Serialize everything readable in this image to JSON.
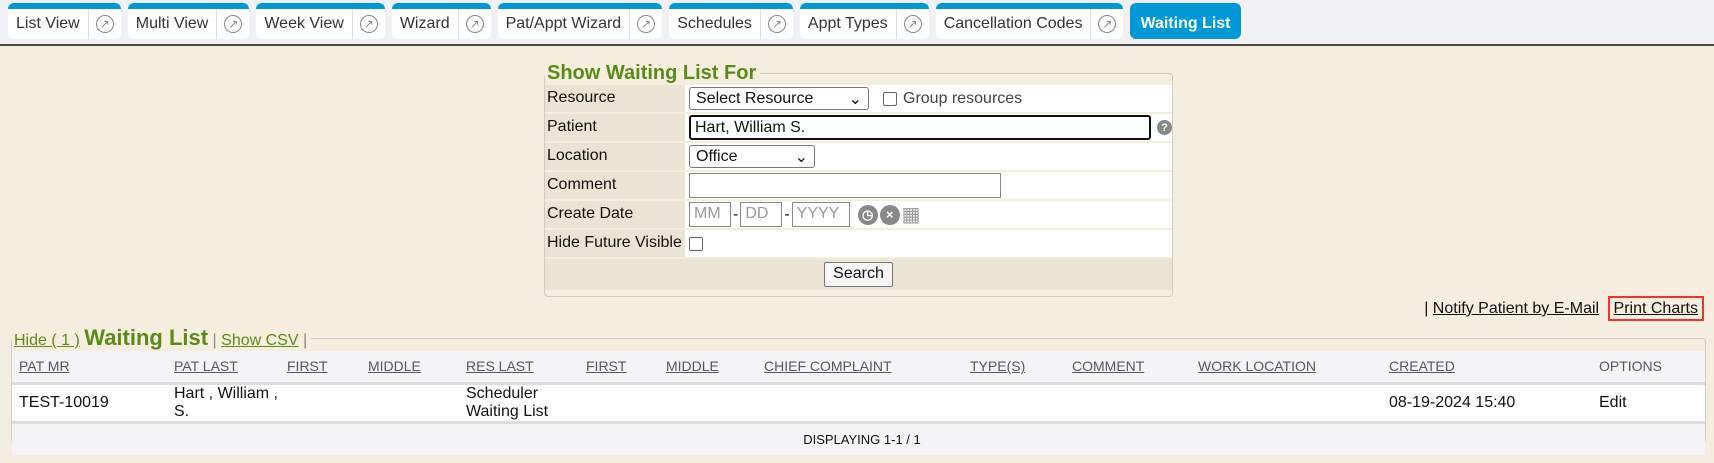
{
  "tabs": [
    {
      "label": "List View"
    },
    {
      "label": "Multi View"
    },
    {
      "label": "Week View"
    },
    {
      "label": "Wizard"
    },
    {
      "label": "Pat/Appt Wizard"
    },
    {
      "label": "Schedules"
    },
    {
      "label": "Appt Types"
    },
    {
      "label": "Cancellation Codes"
    }
  ],
  "active_tab": "Waiting List",
  "form": {
    "title": "Show Waiting List For",
    "resource_label": "Resource",
    "resource_value": "Select Resource",
    "group_label": "Group resources",
    "patient_label": "Patient",
    "patient_value": "Hart, William S.",
    "location_label": "Location",
    "location_value": "Office",
    "comment_label": "Comment",
    "comment_value": "",
    "date_label": "Create Date",
    "mm": "MM",
    "dd": "DD",
    "yyyy": "YYYY",
    "hide_label": "Hide Future Visible",
    "search": "Search"
  },
  "links": {
    "sep": "|",
    "notify": "Notify Patient by E-Mail",
    "print": "Print Charts"
  },
  "list": {
    "hide": "Hide ( 1 )",
    "title": "Waiting List",
    "csv": "Show CSV",
    "columns": [
      "PAT MR",
      "PAT LAST",
      "FIRST",
      "MIDDLE",
      "RES LAST",
      "FIRST",
      "MIDDLE",
      "CHIEF COMPLAINT",
      "TYPE(S)",
      "COMMENT",
      "WORK LOCATION",
      "CREATED",
      "OPTIONS"
    ],
    "rows": [
      [
        "TEST-10019",
        "Hart , William , S.",
        "",
        "",
        "Scheduler Waiting List",
        "",
        "",
        "",
        "",
        "",
        "",
        "08-19-2024 15:40",
        "Edit"
      ]
    ],
    "footer": "DISPLAYING 1-1 / 1"
  },
  "colors": {
    "accent": "#0099d8",
    "legend": "#5a8a1a",
    "highlight": "#ee3333"
  }
}
